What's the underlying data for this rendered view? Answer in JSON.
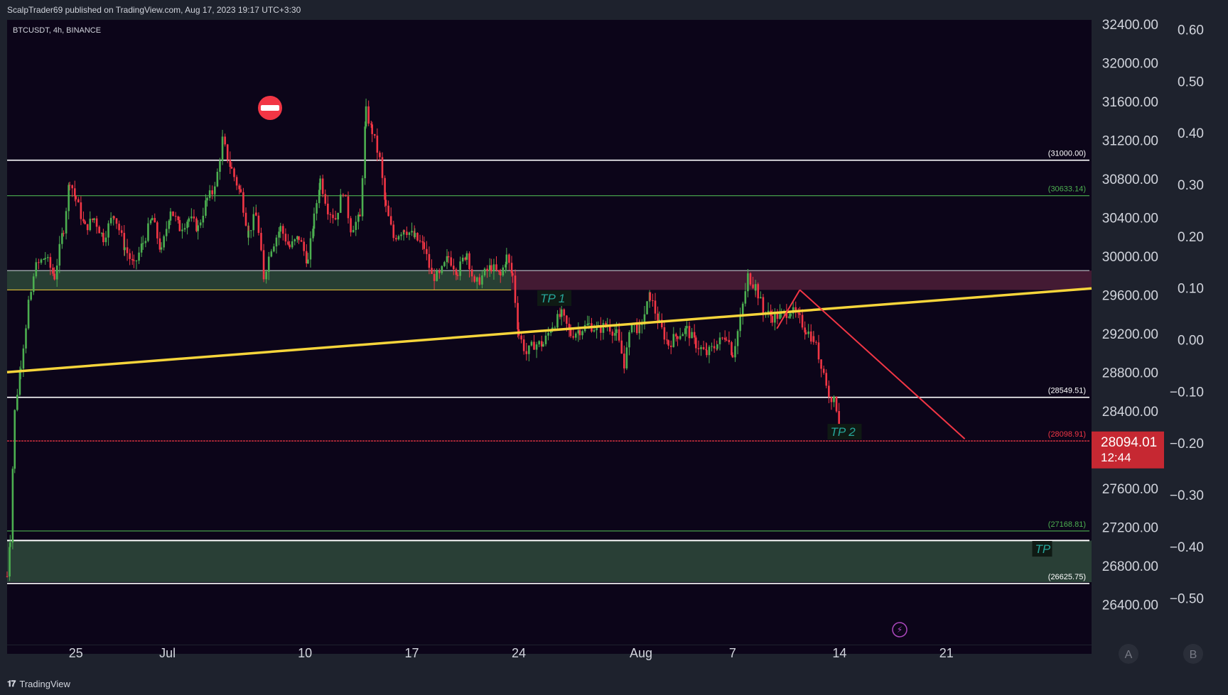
{
  "header": {
    "published": "ScalpTrader69 published on TradingView.com, Aug 17, 2023 19:17 UTC+3:30",
    "symbol": "BTCUSDT, 4h, BINANCE"
  },
  "footer": {
    "brand": "TradingView",
    "logo_icon": "tradingview-logo-icon"
  },
  "colors": {
    "background": "#0c0519",
    "panel": "#1e222d",
    "up": "#4caf50",
    "down": "#f23645",
    "trendline": "#f7d53b",
    "red_line": "#f23645",
    "green_line": "#4caf50",
    "white_line": "#ffffff",
    "tp_text": "#26a69a",
    "price_tag": "#c62832"
  },
  "chart_data": {
    "type": "candlestick",
    "title": "BTCUSDT, 4h, BINANCE",
    "ylim": [
      26200,
      32450
    ],
    "right_ylim": [
      -0.55,
      0.62
    ],
    "y_ticks": [
      "32400.00",
      "32000.00",
      "31600.00",
      "31200.00",
      "30800.00",
      "30400.00",
      "30000.00",
      "29600.00",
      "29200.00",
      "28800.00",
      "28400.00",
      "27600.00",
      "27200.00",
      "26800.00",
      "26400.00"
    ],
    "y_tick_values": [
      32400,
      32000,
      31600,
      31200,
      30800,
      30400,
      30000,
      29600,
      29200,
      28800,
      28400,
      27600,
      27200,
      26800,
      26400
    ],
    "right_ticks": [
      "0.60",
      "0.50",
      "0.40",
      "0.30",
      "0.20",
      "0.10",
      "0.00",
      "−0.10",
      "−0.20",
      "−0.30",
      "−0.40",
      "−0.50"
    ],
    "right_tick_values": [
      0.6,
      0.5,
      0.4,
      0.3,
      0.2,
      0.1,
      0.0,
      -0.1,
      -0.2,
      -0.3,
      -0.4,
      -0.5
    ],
    "x_ticks": [
      "25",
      "Jul",
      "10",
      "17",
      "24",
      "Aug",
      "7",
      "14",
      "21"
    ],
    "x_tick_days": [
      0,
      6,
      15,
      22,
      29,
      37,
      43,
      50,
      57
    ],
    "x_range_days": [
      -4.5,
      66.5
    ],
    "horizontal_levels": [
      {
        "label": "(31000.00)",
        "value": 31000.0,
        "color": "#ffffff"
      },
      {
        "label": "(30633.14)",
        "value": 30633.14,
        "color": "#4caf50"
      },
      {
        "label": "(28549.51)",
        "value": 28549.51,
        "color": "#ffffff"
      },
      {
        "label": "(28098.91)",
        "value": 28098.91,
        "color": "#f23645"
      },
      {
        "label": "(27168.81)",
        "value": 27168.81,
        "color": "#4caf50"
      },
      {
        "label": "(26625.75)",
        "value": 26625.75,
        "color": "#ffffff"
      }
    ],
    "zones": [
      {
        "name": "support-zone-upper",
        "from_day": -4.5,
        "to_day": 28.5,
        "low": 29660,
        "high": 29860,
        "color": "#2e4a3a"
      },
      {
        "name": "resistance-zone",
        "from_day": 28.5,
        "to_day": 66.5,
        "low": 29660,
        "high": 29860,
        "color": "#4e1f38"
      },
      {
        "name": "target-zone",
        "from_day": -4.5,
        "to_day": 66.5,
        "low": 26640,
        "high": 27070,
        "color": "#2f4a3c"
      }
    ],
    "trendline": {
      "x1_day": -4.5,
      "y1": 28810,
      "x2_day": 66.5,
      "y2": 29675
    },
    "red_lines": [
      {
        "x1_day": 45.9,
        "y1": 29260,
        "x2_day": 47.4,
        "y2": 29660
      },
      {
        "x1_day": 47.4,
        "y1": 29660,
        "x2_day": 58.2,
        "y2": 28120
      }
    ],
    "annotations": [
      {
        "text": "TP 1",
        "day": 30.4,
        "value": 29560
      },
      {
        "text": "TP 2",
        "day": 49.4,
        "value": 28180
      },
      {
        "text": "TP",
        "day": 62.8,
        "value": 26970
      }
    ],
    "last_price": {
      "value": "28094.01",
      "countdown": "12:44",
      "level": 28094.01
    },
    "scale_buttons": [
      "A",
      "B"
    ],
    "anchors": [
      [
        -4.5,
        26700
      ],
      [
        -4.3,
        27100
      ],
      [
        -4.0,
        28400
      ],
      [
        -3.6,
        28900
      ],
      [
        -3.1,
        29500
      ],
      [
        -2.6,
        29900
      ],
      [
        -2,
        30000
      ],
      [
        -1.4,
        29800
      ],
      [
        -0.8,
        30300
      ],
      [
        -0.4,
        30800
      ],
      [
        0,
        30600
      ],
      [
        0.6,
        30300
      ],
      [
        1.2,
        30400
      ],
      [
        1.8,
        30200
      ],
      [
        2.5,
        30450
      ],
      [
        3.2,
        30100
      ],
      [
        3.8,
        29900
      ],
      [
        4.4,
        30150
      ],
      [
        5.0,
        30400
      ],
      [
        5.6,
        30050
      ],
      [
        6.2,
        30500
      ],
      [
        6.8,
        30300
      ],
      [
        7.4,
        30400
      ],
      [
        8.0,
        30300
      ],
      [
        8.6,
        30600
      ],
      [
        9.1,
        30700
      ],
      [
        9.6,
        31200
      ],
      [
        10.2,
        30900
      ],
      [
        10.8,
        30650
      ],
      [
        11.3,
        30250
      ],
      [
        11.8,
        30450
      ],
      [
        12.3,
        29800
      ],
      [
        12.8,
        30100
      ],
      [
        13.4,
        30300
      ],
      [
        14,
        30100
      ],
      [
        14.6,
        30200
      ],
      [
        15.2,
        29950
      ],
      [
        15.6,
        30400
      ],
      [
        16.0,
        30800
      ],
      [
        16.5,
        30500
      ],
      [
        17.0,
        30400
      ],
      [
        17.5,
        30700
      ],
      [
        18,
        30300
      ],
      [
        18.6,
        30400
      ],
      [
        19.0,
        31500
      ],
      [
        19.4,
        31300
      ],
      [
        19.9,
        31000
      ],
      [
        20.3,
        30500
      ],
      [
        20.8,
        30200
      ],
      [
        21.5,
        30300
      ],
      [
        22.2,
        30200
      ],
      [
        22.8,
        30100
      ],
      [
        23.3,
        29800
      ],
      [
        23.8,
        29800
      ],
      [
        24.4,
        30000
      ],
      [
        25,
        29850
      ],
      [
        25.6,
        30050
      ],
      [
        26.1,
        29700
      ],
      [
        26.6,
        29800
      ],
      [
        27.2,
        29900
      ],
      [
        27.8,
        29800
      ],
      [
        28.2,
        30000
      ],
      [
        28.6,
        29800
      ],
      [
        29.0,
        29200
      ],
      [
        29.5,
        29000
      ],
      [
        30.0,
        29100
      ],
      [
        30.6,
        29100
      ],
      [
        31.2,
        29300
      ],
      [
        31.8,
        29400
      ],
      [
        32.4,
        29200
      ],
      [
        33.0,
        29250
      ],
      [
        33.6,
        29300
      ],
      [
        34.2,
        29250
      ],
      [
        34.8,
        29300
      ],
      [
        35.4,
        29200
      ],
      [
        35.9,
        28900
      ],
      [
        36.4,
        29300
      ],
      [
        36.9,
        29250
      ],
      [
        37.6,
        29600
      ],
      [
        38.2,
        29300
      ],
      [
        38.8,
        29100
      ],
      [
        39.4,
        29200
      ],
      [
        40.0,
        29250
      ],
      [
        40.6,
        29100
      ],
      [
        41.3,
        29000
      ],
      [
        42.0,
        29100
      ],
      [
        42.6,
        29200
      ],
      [
        43.0,
        29000
      ],
      [
        43.5,
        29350
      ],
      [
        44.0,
        29800
      ],
      [
        44.5,
        29700
      ],
      [
        45.0,
        29450
      ],
      [
        45.6,
        29380
      ],
      [
        46.2,
        29400
      ],
      [
        46.8,
        29450
      ],
      [
        47.4,
        29350
      ],
      [
        47.8,
        29250
      ],
      [
        48.3,
        29150
      ],
      [
        48.8,
        28900
      ],
      [
        49.3,
        28600
      ],
      [
        49.8,
        28450
      ],
      [
        50.1,
        28120
      ]
    ]
  }
}
